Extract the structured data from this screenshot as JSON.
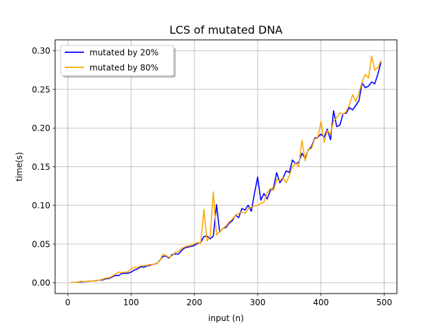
{
  "chart_data": {
    "type": "line",
    "title": "LCS of mutated DNA",
    "xlabel": "input (n)",
    "ylabel": "time(s)",
    "xlim": [
      -20,
      520
    ],
    "ylim": [
      -0.014,
      0.314
    ],
    "xticks": [
      0,
      100,
      200,
      300,
      400,
      500
    ],
    "xtick_labels": [
      "0",
      "100",
      "200",
      "300",
      "400",
      "500"
    ],
    "yticks": [
      0.0,
      0.05,
      0.1,
      0.15,
      0.2,
      0.25,
      0.3
    ],
    "ytick_labels": [
      "0.00",
      "0.05",
      "0.10",
      "0.15",
      "0.20",
      "0.25",
      "0.30"
    ],
    "grid": true,
    "legend": "top-left",
    "x": [
      5,
      10,
      15,
      20,
      25,
      30,
      35,
      40,
      45,
      50,
      55,
      60,
      65,
      70,
      75,
      80,
      85,
      90,
      95,
      100,
      105,
      110,
      115,
      120,
      125,
      130,
      135,
      140,
      145,
      150,
      155,
      160,
      165,
      170,
      175,
      180,
      185,
      190,
      195,
      200,
      205,
      210,
      215,
      220,
      225,
      230,
      235,
      240,
      245,
      250,
      255,
      260,
      265,
      270,
      275,
      280,
      285,
      290,
      295,
      300,
      305,
      310,
      315,
      320,
      325,
      330,
      335,
      340,
      345,
      350,
      355,
      360,
      365,
      370,
      375,
      380,
      385,
      390,
      395,
      400,
      405,
      410,
      415,
      420,
      425,
      430,
      435,
      440,
      445,
      450,
      455,
      460,
      465,
      470,
      475,
      480,
      485,
      490,
      495
    ],
    "series": [
      {
        "name": "mutated by 20%",
        "color": "#0000ff",
        "values": [
          0.0005,
          0.0005,
          0.0006,
          0.0011,
          0.0011,
          0.0016,
          0.0021,
          0.0023,
          0.0028,
          0.0033,
          0.0036,
          0.0052,
          0.0054,
          0.0074,
          0.0095,
          0.0093,
          0.0118,
          0.0123,
          0.0121,
          0.0138,
          0.0163,
          0.0177,
          0.0206,
          0.0201,
          0.0216,
          0.0225,
          0.0238,
          0.0246,
          0.0285,
          0.0339,
          0.0347,
          0.0318,
          0.0365,
          0.0372,
          0.0371,
          0.0418,
          0.0451,
          0.0461,
          0.047,
          0.0482,
          0.0509,
          0.0521,
          0.0598,
          0.0603,
          0.0568,
          0.0603,
          0.101,
          0.0657,
          0.0702,
          0.0715,
          0.0771,
          0.0802,
          0.0874,
          0.0841,
          0.0959,
          0.094,
          0.1002,
          0.0924,
          0.1155,
          0.1365,
          0.1068,
          0.1154,
          0.1082,
          0.1192,
          0.1224,
          0.1424,
          0.1292,
          0.1352,
          0.1446,
          0.1424,
          0.1587,
          0.1537,
          0.1558,
          0.1673,
          0.1612,
          0.1717,
          0.176,
          0.1869,
          0.188,
          0.1921,
          0.1882,
          0.1985,
          0.1848,
          0.2223,
          0.2019,
          0.2039,
          0.2184,
          0.2192,
          0.2265,
          0.2234,
          0.2291,
          0.2353,
          0.2584,
          0.2521,
          0.2541,
          0.2596,
          0.2572,
          0.2699,
          0.2851
        ]
      },
      {
        "name": "mutated by 80%",
        "color": "#ffa500",
        "values": [
          0.0004,
          0.0004,
          0.0005,
          0.0018,
          0.0014,
          0.0017,
          0.0021,
          0.0023,
          0.0031,
          0.0034,
          0.0045,
          0.0061,
          0.0064,
          0.0084,
          0.0108,
          0.0138,
          0.0131,
          0.0135,
          0.0141,
          0.0181,
          0.0198,
          0.0193,
          0.0218,
          0.022,
          0.0224,
          0.0236,
          0.0235,
          0.0251,
          0.0279,
          0.0366,
          0.0353,
          0.0328,
          0.0351,
          0.0396,
          0.0405,
          0.0443,
          0.0464,
          0.0475,
          0.0482,
          0.0504,
          0.0519,
          0.0511,
          0.0949,
          0.0538,
          0.0597,
          0.1176,
          0.0618,
          0.0664,
          0.0701,
          0.0733,
          0.0787,
          0.0822,
          0.0871,
          0.0897,
          0.0913,
          0.0897,
          0.0954,
          0.098,
          0.0995,
          0.1001,
          0.1026,
          0.1042,
          0.1162,
          0.1222,
          0.1194,
          0.1335,
          0.1319,
          0.1361,
          0.1293,
          0.1386,
          0.1498,
          0.1547,
          0.1503,
          0.1843,
          0.1577,
          0.1727,
          0.1733,
          0.1859,
          0.1871,
          0.2085,
          0.1815,
          0.1965,
          0.1923,
          0.2094,
          0.2133,
          0.2197,
          0.2177,
          0.2212,
          0.2306,
          0.2432,
          0.2343,
          0.2455,
          0.2597,
          0.2695,
          0.2644,
          0.2931,
          0.2748,
          0.2781,
          0.2875
        ]
      }
    ]
  }
}
